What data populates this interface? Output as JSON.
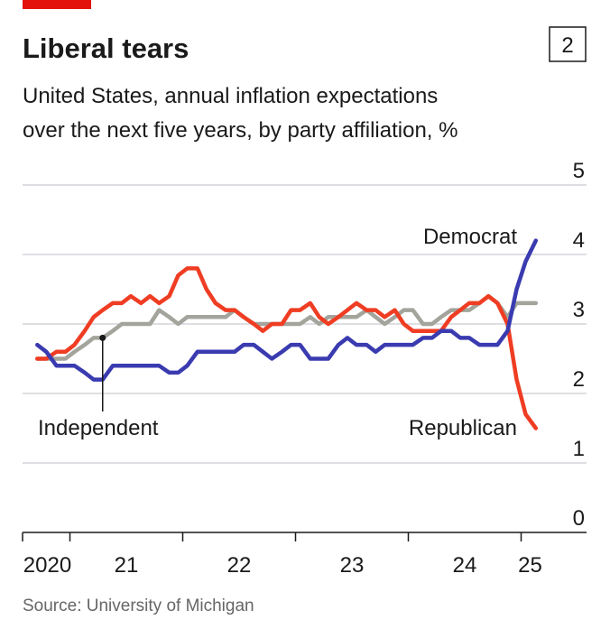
{
  "chart_data": {
    "type": "line",
    "title": "Liberal tears",
    "badge": "2",
    "subtitle": [
      "United States, annual inflation expectations",
      "over the next five years, by party affiliation, %"
    ],
    "source": "Source: University of Michigan",
    "x": [
      2020.71,
      2020.79,
      2020.88,
      2020.96,
      2021.04,
      2021.13,
      2021.21,
      2021.29,
      2021.38,
      2021.46,
      2021.54,
      2021.63,
      2021.71,
      2021.79,
      2021.88,
      2021.96,
      2022.04,
      2022.13,
      2022.21,
      2022.29,
      2022.38,
      2022.46,
      2022.54,
      2022.63,
      2022.71,
      2022.79,
      2022.88,
      2022.96,
      2023.04,
      2023.13,
      2023.21,
      2023.29,
      2023.38,
      2023.46,
      2023.54,
      2023.63,
      2023.71,
      2023.79,
      2023.88,
      2023.96,
      2024.04,
      2024.13,
      2024.21,
      2024.29,
      2024.38,
      2024.46,
      2024.54,
      2024.63,
      2024.71,
      2024.79,
      2024.88,
      2024.96,
      2025.04,
      2025.13
    ],
    "series": [
      {
        "name": "Independent",
        "color": "#a3a49b",
        "values": [
          2.5,
          2.5,
          2.5,
          2.5,
          2.6,
          2.7,
          2.8,
          2.8,
          2.9,
          3.0,
          3.0,
          3.0,
          3.0,
          3.2,
          3.1,
          3.0,
          3.1,
          3.1,
          3.1,
          3.1,
          3.1,
          3.2,
          3.1,
          3.0,
          3.0,
          3.0,
          3.0,
          3.0,
          3.0,
          3.1,
          3.0,
          3.1,
          3.1,
          3.1,
          3.1,
          3.2,
          3.1,
          3.0,
          3.1,
          3.2,
          3.2,
          3.0,
          3.0,
          3.1,
          3.2,
          3.2,
          3.2,
          3.3,
          3.4,
          3.3,
          3.1,
          3.3,
          3.3,
          3.3
        ]
      },
      {
        "name": "Republican",
        "color": "#ef3d23",
        "values": [
          2.5,
          2.5,
          2.6,
          2.6,
          2.7,
          2.9,
          3.1,
          3.2,
          3.3,
          3.3,
          3.4,
          3.3,
          3.4,
          3.3,
          3.4,
          3.7,
          3.8,
          3.8,
          3.5,
          3.3,
          3.2,
          3.2,
          3.1,
          3.0,
          2.9,
          3.0,
          3.0,
          3.2,
          3.2,
          3.3,
          3.1,
          3.0,
          3.1,
          3.2,
          3.3,
          3.2,
          3.2,
          3.1,
          3.2,
          3.0,
          2.9,
          2.9,
          2.9,
          2.9,
          3.1,
          3.2,
          3.3,
          3.3,
          3.4,
          3.3,
          3.0,
          2.2,
          1.7,
          1.5
        ]
      },
      {
        "name": "Democrat",
        "color": "#3a3bb0",
        "values": [
          2.7,
          2.6,
          2.4,
          2.4,
          2.4,
          2.3,
          2.2,
          2.2,
          2.4,
          2.4,
          2.4,
          2.4,
          2.4,
          2.4,
          2.3,
          2.3,
          2.4,
          2.6,
          2.6,
          2.6,
          2.6,
          2.6,
          2.7,
          2.7,
          2.6,
          2.5,
          2.6,
          2.7,
          2.7,
          2.5,
          2.5,
          2.5,
          2.7,
          2.8,
          2.7,
          2.7,
          2.6,
          2.7,
          2.7,
          2.7,
          2.7,
          2.8,
          2.8,
          2.9,
          2.9,
          2.8,
          2.8,
          2.7,
          2.7,
          2.7,
          2.9,
          3.5,
          3.9,
          4.2
        ]
      }
    ],
    "xlim": [
      2020.58,
      2025.58
    ],
    "xticks": [
      2021,
      2022,
      2023,
      2024,
      2025
    ],
    "xlabels": [
      {
        "value": 2020.8,
        "label": "2020"
      },
      {
        "value": 2021.5,
        "label": "21"
      },
      {
        "value": 2022.5,
        "label": "22"
      },
      {
        "value": 2023.5,
        "label": "23"
      },
      {
        "value": 2024.5,
        "label": "24"
      },
      {
        "value": 2025.08,
        "label": "25"
      }
    ],
    "ylim": [
      0,
      5
    ],
    "yticks": [
      0,
      1,
      2,
      3,
      4,
      5
    ],
    "grid": true
  }
}
